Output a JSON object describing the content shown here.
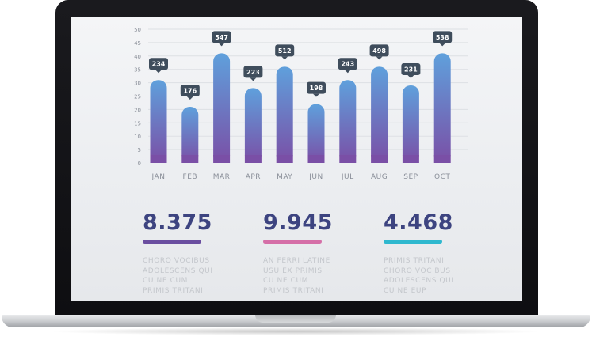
{
  "chart_data": {
    "type": "bar",
    "categories": [
      "JAN",
      "FEB",
      "MAR",
      "APR",
      "MAY",
      "JUN",
      "JUL",
      "AUG",
      "SEP",
      "OCT"
    ],
    "values": [
      31,
      21,
      41,
      28,
      36,
      22,
      31,
      36,
      29,
      41
    ],
    "data_labels": [
      "234",
      "176",
      "547",
      "223",
      "512",
      "198",
      "243",
      "498",
      "231",
      "538"
    ],
    "yticks": [
      0,
      5,
      10,
      15,
      20,
      25,
      30,
      35,
      40,
      45,
      50
    ],
    "ylim": [
      0,
      50
    ],
    "grid": true,
    "colors": {
      "bar_top": "#5fa0dc",
      "bar_bottom": "#7a4fa6",
      "label_bg": "#3f4d5c",
      "label_text": "#ffffff",
      "axis_text": "#8a8f99",
      "grid": "#dde0e4"
    }
  },
  "stats": [
    {
      "value": "8.375",
      "accent": "#6a4ea0",
      "lines": [
        "CHORO VOCIBUS",
        "ADOLESCENS QUI",
        "CU NE CUM",
        "PRIMIS TRITANI"
      ]
    },
    {
      "value": "9.945",
      "accent": "#d56fa8",
      "lines": [
        "AN FERRI LATINE",
        "USU EX PRIMIS",
        "CU NE CUM",
        "PRIMIS TRITANI"
      ]
    },
    {
      "value": "4.468",
      "accent": "#2fb8cf",
      "lines": [
        "PRIMIS TRITANI",
        "CHORO VOCIBUS",
        "ADOLESCENS QUI",
        "CU NE EUP"
      ]
    }
  ]
}
